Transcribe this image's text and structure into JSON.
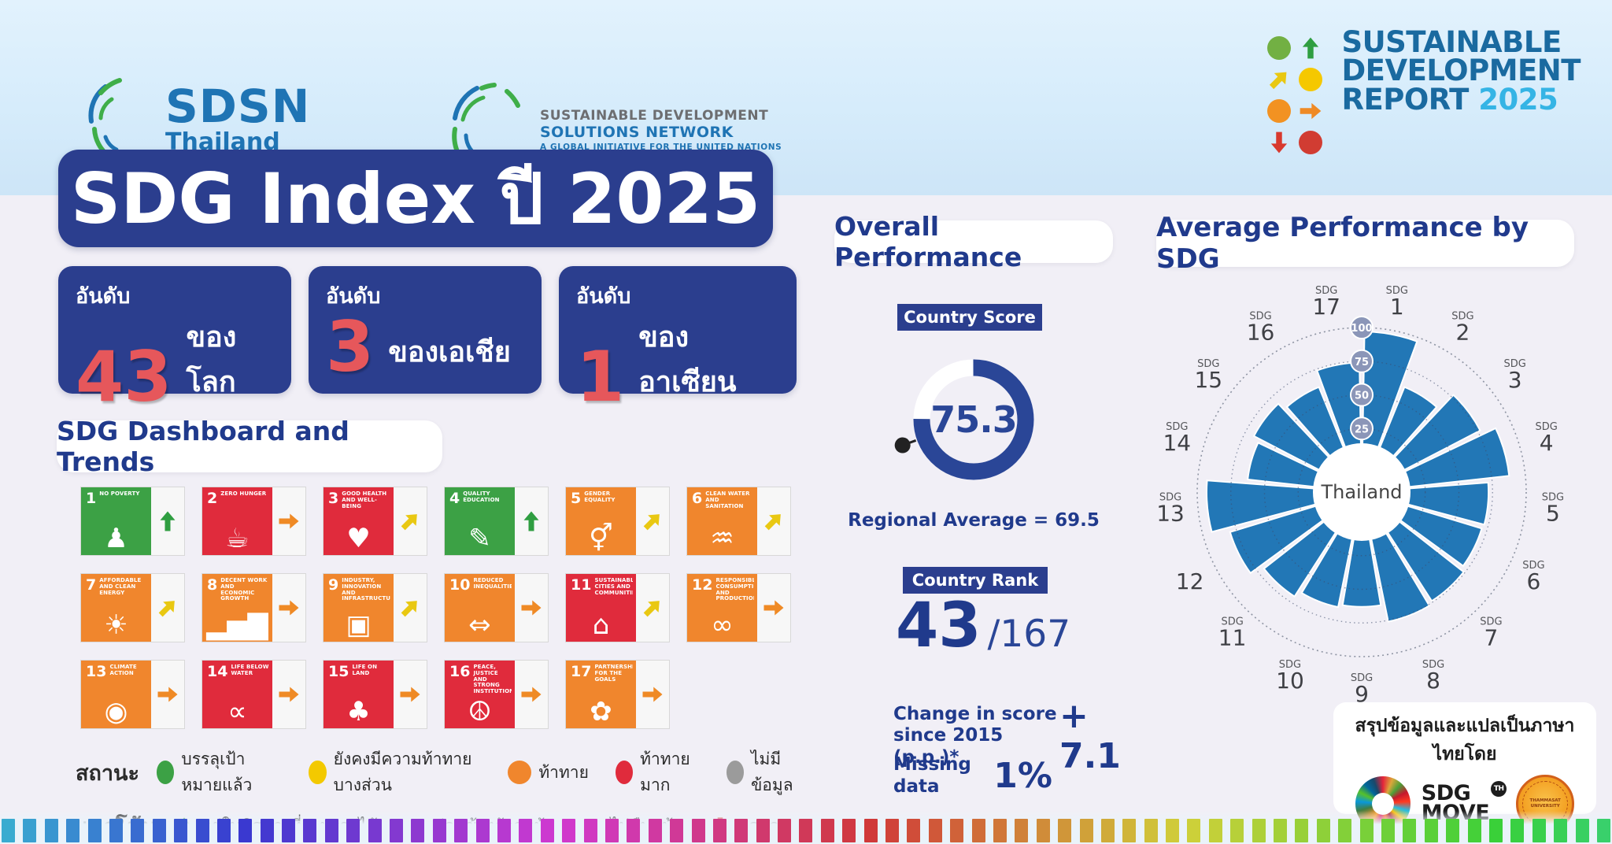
{
  "header": {
    "sdsn_thailand": {
      "name": "SDSN",
      "country": "Thailand"
    },
    "sdsn_global": {
      "line1": "SUSTAINABLE DEVELOPMENT",
      "line2": "SOLUTIONS NETWORK",
      "line3": "A GLOBAL INITIATIVE FOR THE UNITED NATIONS"
    },
    "sdr_logo": {
      "line1": "SUSTAINABLE",
      "line2": "DEVELOPMENT",
      "line3": "REPORT",
      "year": "2025"
    }
  },
  "title": "SDG Index ปี 2025",
  "rank_boxes": [
    {
      "label": "อันดับ",
      "value": "43",
      "suffix": "ของโลก"
    },
    {
      "label": "อันดับ",
      "value": "3",
      "suffix": "ของเอเชีย"
    },
    {
      "label": "อันดับ",
      "value": "1",
      "suffix": "ของอาเซียน"
    }
  ],
  "dashboard": {
    "heading": "SDG Dashboard and Trends",
    "tiles": [
      {
        "num": "1",
        "title": "NO POVERTY",
        "status": "green",
        "trend": "up",
        "icon": "family"
      },
      {
        "num": "2",
        "title": "ZERO HUNGER",
        "status": "red",
        "trend": "right",
        "icon": "bowl"
      },
      {
        "num": "3",
        "title": "GOOD HEALTH AND WELL-BEING",
        "status": "red",
        "trend": "diag",
        "icon": "heart-pulse"
      },
      {
        "num": "4",
        "title": "QUALITY EDUCATION",
        "status": "green",
        "trend": "up",
        "icon": "book"
      },
      {
        "num": "5",
        "title": "GENDER EQUALITY",
        "status": "orange",
        "trend": "diag",
        "icon": "gender"
      },
      {
        "num": "6",
        "title": "CLEAN WATER AND SANITATION",
        "status": "orange",
        "trend": "diag",
        "icon": "water"
      },
      {
        "num": "7",
        "title": "AFFORDABLE AND CLEAN ENERGY",
        "status": "orange",
        "trend": "diag",
        "icon": "sun"
      },
      {
        "num": "8",
        "title": "DECENT WORK AND ECONOMIC GROWTH",
        "status": "orange",
        "trend": "right",
        "icon": "growth"
      },
      {
        "num": "9",
        "title": "INDUSTRY, INNOVATION AND INFRASTRUCTURE",
        "status": "orange",
        "trend": "diag",
        "icon": "cubes"
      },
      {
        "num": "10",
        "title": "REDUCED INEQUALITIES",
        "status": "orange",
        "trend": "right",
        "icon": "equality"
      },
      {
        "num": "11",
        "title": "SUSTAINABLE CITIES AND COMMUNITIES",
        "status": "red",
        "trend": "diag",
        "icon": "city"
      },
      {
        "num": "12",
        "title": "RESPONSIBLE CONSUMPTION AND PRODUCTION",
        "status": "orange",
        "trend": "right",
        "icon": "infinity"
      },
      {
        "num": "13",
        "title": "CLIMATE ACTION",
        "status": "orange",
        "trend": "right",
        "icon": "eye-globe"
      },
      {
        "num": "14",
        "title": "LIFE BELOW WATER",
        "status": "red",
        "trend": "right",
        "icon": "fish"
      },
      {
        "num": "15",
        "title": "LIFE ON LAND",
        "status": "red",
        "trend": "right",
        "icon": "tree"
      },
      {
        "num": "16",
        "title": "PEACE, JUSTICE AND STRONG INSTITUTIONS",
        "status": "red",
        "trend": "right",
        "icon": "dove"
      },
      {
        "num": "17",
        "title": "PARTNERSHIPS FOR THE GOALS",
        "status": "orange",
        "trend": "right",
        "icon": "rings"
      }
    ]
  },
  "legend": {
    "status": {
      "label": "สถานะ",
      "items": [
        {
          "color": "green",
          "text": "บรรลุเป้าหมายแล้ว"
        },
        {
          "color": "yellow",
          "text": "ยังคงมีความท้าทายบางส่วน"
        },
        {
          "color": "orange",
          "text": "ท้าทาย"
        },
        {
          "color": "red",
          "text": "ท้าทายมาก"
        },
        {
          "color": "gray",
          "text": "ไม่มีข้อมูล"
        }
      ]
    },
    "trend": {
      "label": "แนวโน้ม",
      "items": [
        {
          "arrow": "up",
          "text": "อยู่ในทิศทางที่จะบรรลุได้"
        },
        {
          "arrow": "diag",
          "text": "ค่อนข้างก้าวหน้า"
        },
        {
          "arrow": "right",
          "text": "ไม่คืบหน้า"
        },
        {
          "arrow": "down",
          "text": "ถดถอย"
        }
      ]
    }
  },
  "overall": {
    "heading": "Overall Performance",
    "score_label": "Country Score",
    "score": "75.3",
    "regional_average": "Regional Average = 69.5",
    "rank_label": "Country Rank",
    "rank": "43",
    "rank_total": "/167",
    "change_label_1": "Change in score",
    "change_label_2": "since 2015 (p.p.)*",
    "change_value": "+ 7.1",
    "missing_label_1": "Missing",
    "missing_label_2": "data",
    "missing_value": "1%"
  },
  "avg_heading": "Average Performance by SDG",
  "chart_data": [
    {
      "type": "donut_gauge",
      "title": "Country Score",
      "value": 75.3,
      "max": 100,
      "marker_value": 69.5,
      "marker_label": "Regional Average = 69.5",
      "color": "#2a4697"
    },
    {
      "type": "polar_bar",
      "title": "Average Performance by SDG",
      "center_label": "Thailand",
      "radial_ticks": [
        25,
        50,
        75,
        100
      ],
      "rlim": [
        0,
        100
      ],
      "bar_color": "#2277b6",
      "labels": [
        {
          "prefix": "SDG",
          "num": "1"
        },
        {
          "prefix": "SDG",
          "num": "2"
        },
        {
          "prefix": "SDG",
          "num": "3"
        },
        {
          "prefix": "SDG",
          "num": "4"
        },
        {
          "prefix": "SDG",
          "num": "5"
        },
        {
          "prefix": "SDG",
          "num": "6"
        },
        {
          "prefix": "SDG",
          "num": "7"
        },
        {
          "prefix": "SDG",
          "num": "8"
        },
        {
          "prefix": "SDG",
          "num": "9"
        },
        {
          "prefix": "SDG",
          "num": "10"
        },
        {
          "prefix": "SDG",
          "num": "11"
        },
        {
          "prefix": "",
          "num": "12"
        },
        {
          "prefix": "SDG",
          "num": "13"
        },
        {
          "prefix": "SDG",
          "num": "14"
        },
        {
          "prefix": "SDG",
          "num": "15"
        },
        {
          "prefix": "SDG",
          "num": "16"
        },
        {
          "prefix": "SDG",
          "num": "17"
        }
      ],
      "values": [
        97,
        62,
        77,
        88,
        72,
        71,
        74,
        76,
        63,
        65,
        70,
        80,
        93,
        63,
        68,
        62,
        74
      ]
    }
  ],
  "credit": {
    "text": "สรุปข้อมูลและแปลเป็นภาษาไทยโดย",
    "sdgmove_line1": "SDG",
    "sdgmove_line2": "MOVE",
    "sdgmove_badge": "TH",
    "university": "THAMMASAT UNIVERSITY"
  },
  "strip": {
    "bar_count": 75
  },
  "colors": {
    "dark_blue": "#2b3e8e",
    "text_blue": "#203a8c",
    "red_number": "#e6575b",
    "gauge_blue": "#2a4697",
    "polar_blue": "#2277b6",
    "sdr_text": "#1a6aa0",
    "sdr_year": "#35b4e5",
    "status": {
      "green": "#3ca145",
      "yellow": "#f3c900",
      "orange": "#f0862d",
      "red": "#e02b3c",
      "gray": "#9b9b9b"
    },
    "trend": {
      "up": "#2f9e41",
      "diag": "#e9c812",
      "right": "#ef8a25",
      "down": "#d8392e"
    }
  }
}
